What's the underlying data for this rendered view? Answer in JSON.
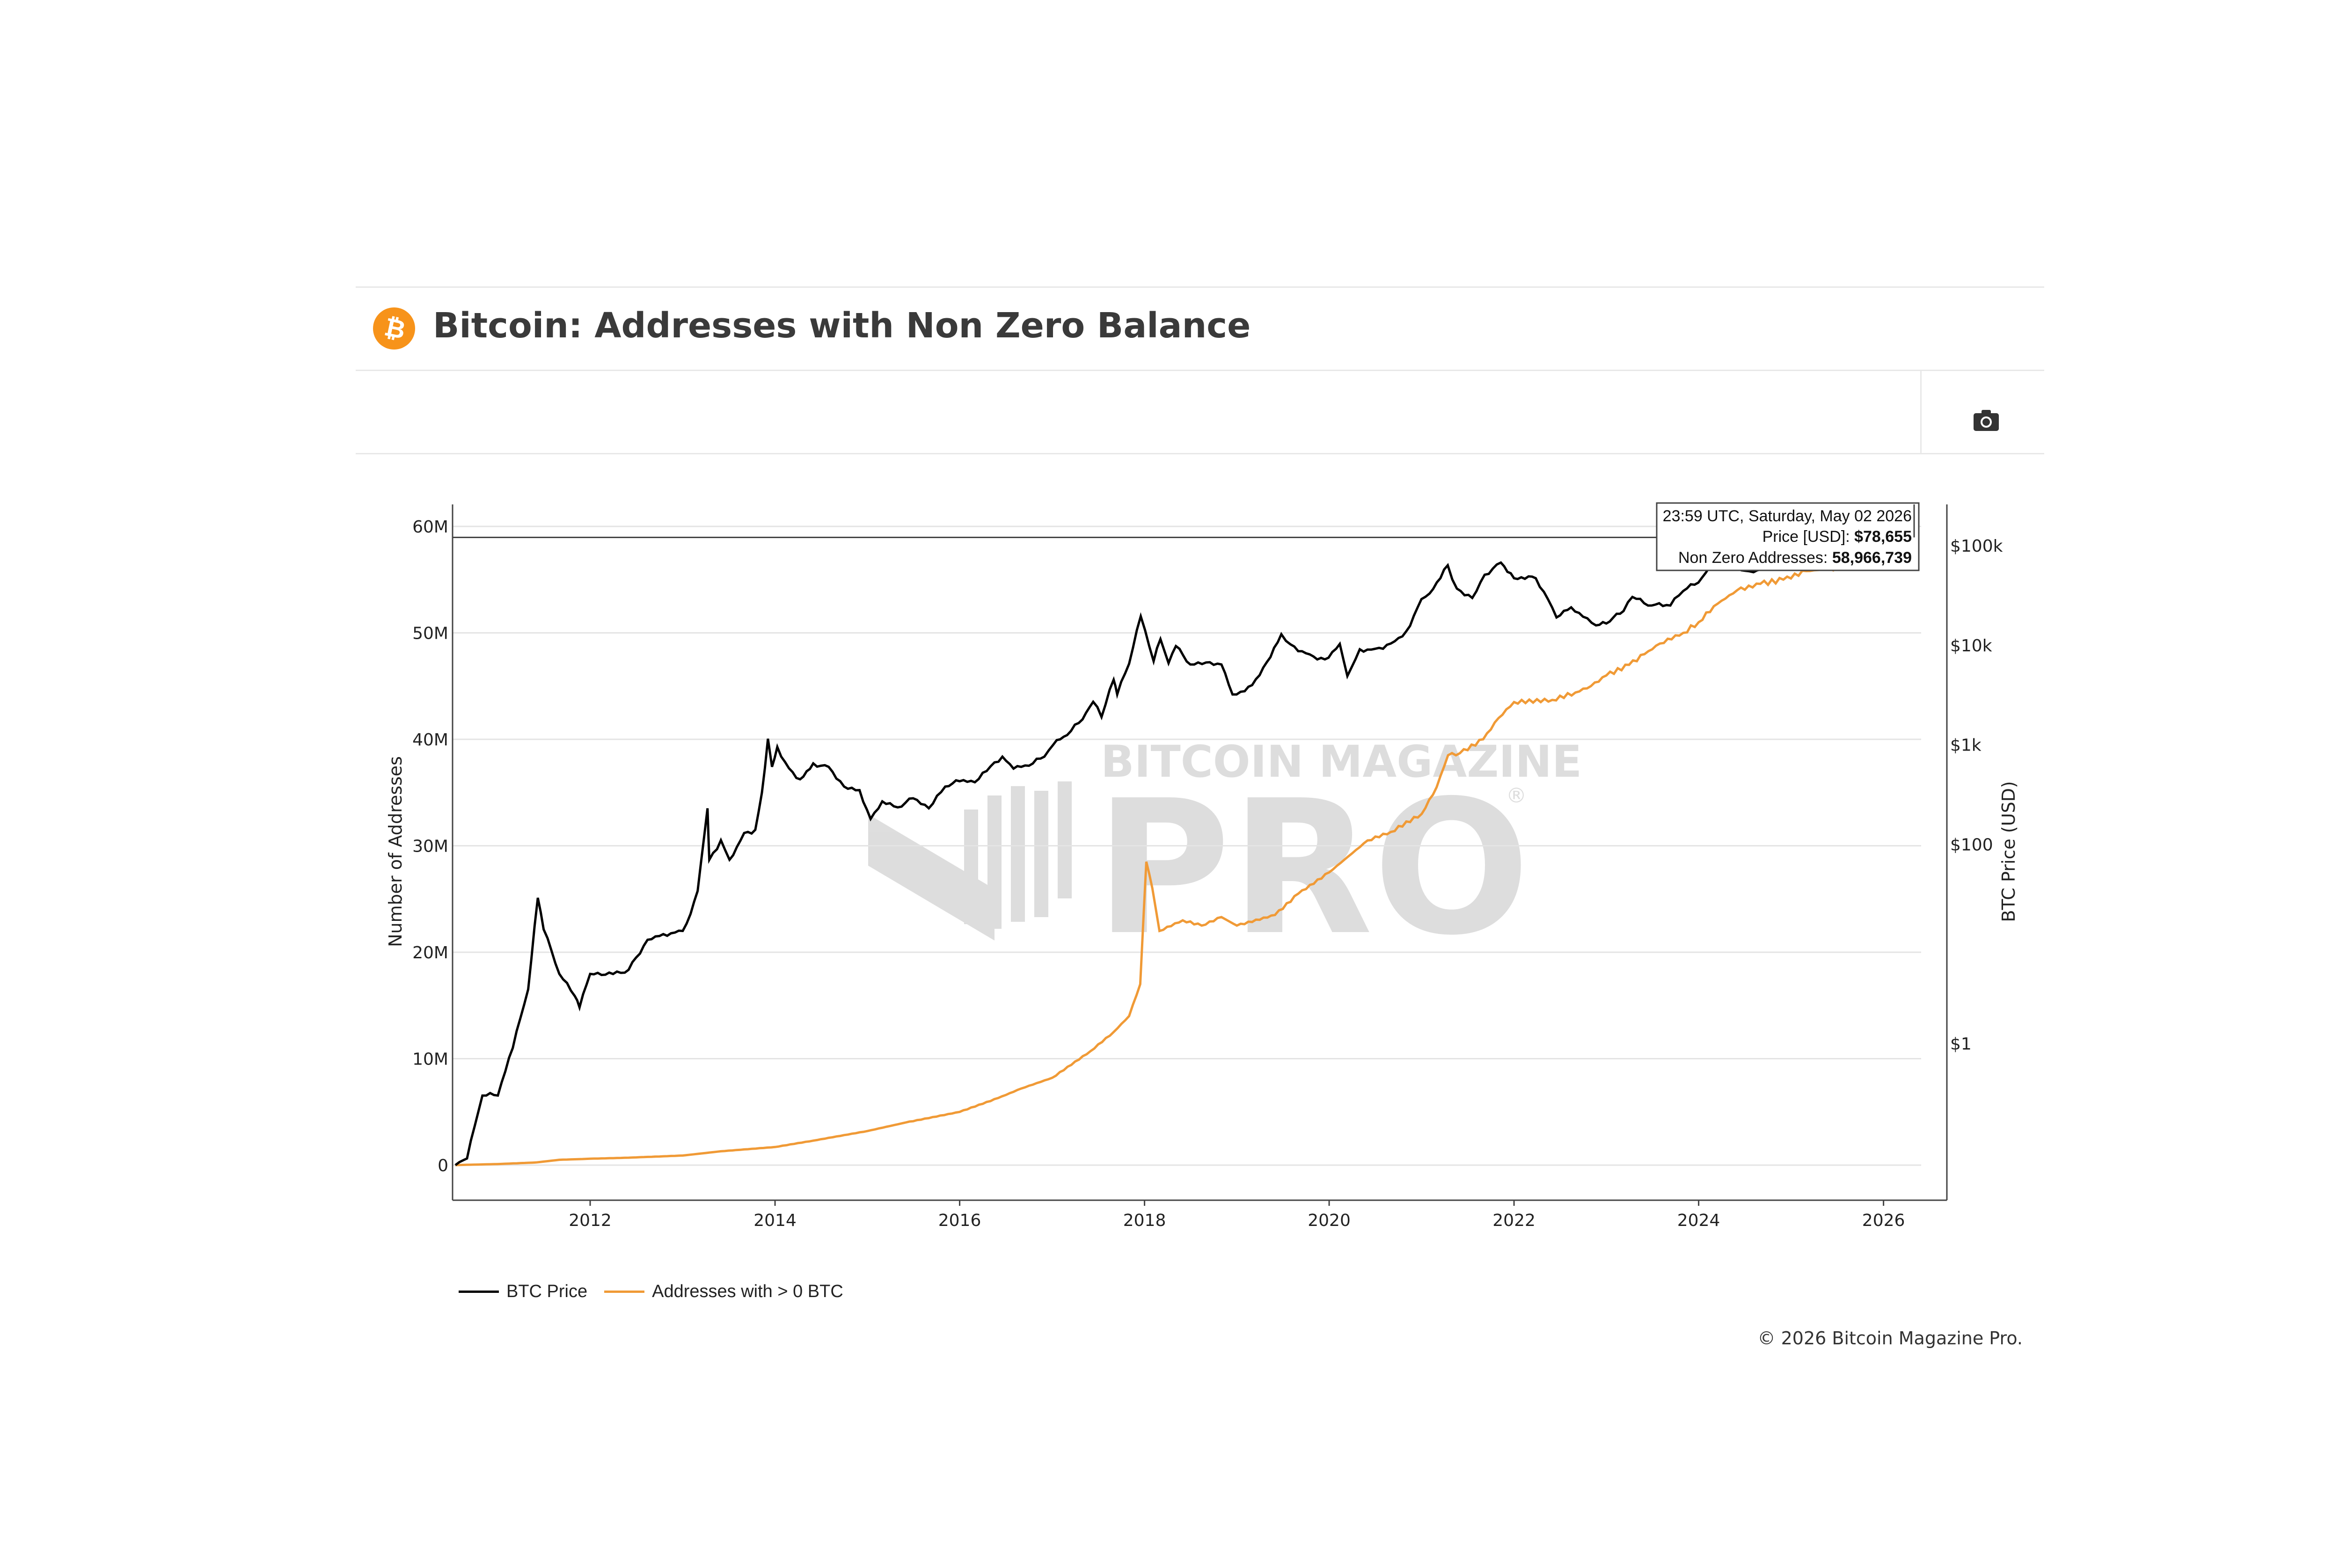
{
  "header": {
    "title": "Bitcoin: Addresses with Non Zero Balance",
    "logo_icon": "bitcoin-logo-icon",
    "logo_color": "#f7931a",
    "camera_icon": "camera-icon"
  },
  "watermark": {
    "line1": "BITCOIN MAGAZINE",
    "line2": "PRO",
    "registered": "®"
  },
  "tooltip": {
    "date": "23:59 UTC, Saturday, May 02 2026",
    "price_label": "Price [USD]: ",
    "price_value": "$78,655",
    "addr_label": "Non Zero Addresses: ",
    "addr_value": "58,966,739"
  },
  "legend": {
    "btc_price": "BTC Price",
    "addresses": "Addresses with > 0 BTC"
  },
  "copyright": "© 2026 Bitcoin Magazine Pro.",
  "chart_data": {
    "type": "line",
    "title": "Bitcoin: Addresses with Non Zero Balance",
    "ylabel": "Number of Addresses",
    "y2label": "BTC Price (USD)",
    "x_range": [
      "2010-07-17",
      "2026-05-02"
    ],
    "ylim": [
      0,
      60000000
    ],
    "y2_scale": "log",
    "x_ticks": [
      "2012",
      "2014",
      "2016",
      "2018",
      "2020",
      "2022",
      "2024",
      "2026"
    ],
    "y_ticks": [
      "0",
      "10M",
      "20M",
      "30M",
      "40M",
      "50M",
      "60M"
    ],
    "y_tick_values": [
      0,
      10000000,
      20000000,
      30000000,
      40000000,
      50000000,
      60000000
    ],
    "y2_ticks": [
      "$1",
      "$100",
      "$1k",
      "$10k",
      "$100k"
    ],
    "y2_tick_values": [
      1,
      100,
      1000,
      10000,
      100000
    ],
    "grid": true,
    "legend_position": "bottom-left",
    "series": [
      {
        "name": "BTC Price",
        "axis": "right",
        "color": "#000000",
        "x": [
          "2010-07-17",
          "2010-09-01",
          "2010-11-01",
          "2011-01-01",
          "2011-03-01",
          "2011-05-01",
          "2011-06-08",
          "2011-07-01",
          "2011-09-01",
          "2011-11-01",
          "2011-11-20",
          "2012-01-01",
          "2012-03-01",
          "2012-06-01",
          "2012-08-15",
          "2012-10-01",
          "2012-12-01",
          "2013-01-01",
          "2013-02-01",
          "2013-03-01",
          "2013-04-09",
          "2013-04-16",
          "2013-06-01",
          "2013-07-05",
          "2013-09-01",
          "2013-10-15",
          "2013-11-10",
          "2013-12-04",
          "2013-12-20",
          "2014-01-10",
          "2014-02-25",
          "2014-04-10",
          "2014-06-01",
          "2014-08-01",
          "2014-10-01",
          "2014-12-01",
          "2015-01-14",
          "2015-03-01",
          "2015-05-01",
          "2015-07-01",
          "2015-09-01",
          "2015-11-05",
          "2016-01-01",
          "2016-03-01",
          "2016-06-18",
          "2016-08-01",
          "2016-10-01",
          "2016-12-01",
          "2017-01-05",
          "2017-03-01",
          "2017-05-01",
          "2017-06-12",
          "2017-07-15",
          "2017-09-01",
          "2017-09-15",
          "2017-11-01",
          "2017-12-17",
          "2018-02-06",
          "2018-03-05",
          "2018-04-06",
          "2018-05-05",
          "2018-07-01",
          "2018-09-01",
          "2018-11-01",
          "2018-12-15",
          "2019-02-01",
          "2019-04-01",
          "2019-06-26",
          "2019-08-01",
          "2019-10-01",
          "2019-12-15",
          "2020-02-12",
          "2020-03-13",
          "2020-05-01",
          "2020-07-01",
          "2020-09-01",
          "2020-11-01",
          "2020-12-31",
          "2021-02-01",
          "2021-04-14",
          "2021-05-20",
          "2021-07-20",
          "2021-09-07",
          "2021-11-10",
          "2022-01-01",
          "2022-03-28",
          "2022-05-15",
          "2022-06-18",
          "2022-08-15",
          "2022-10-01",
          "2022-11-21",
          "2023-01-01",
          "2023-03-10",
          "2023-04-14",
          "2023-06-15",
          "2023-09-11",
          "2023-11-01",
          "2023-12-31",
          "2024-03-14",
          "2024-05-01",
          "2024-08-05",
          "2024-10-01",
          "2024-12-17",
          "2025-01-20",
          "2025-04-08",
          "2025-06-01",
          "2025-08-14",
          "2025-10-06",
          "2025-11-21",
          "2026-01-01",
          "2026-02-06",
          "2026-03-15",
          "2026-05-02"
        ],
        "values": [
          0.06,
          0.07,
          0.3,
          0.3,
          0.9,
          3.5,
          29,
          14,
          5,
          3,
          2.3,
          5,
          4.9,
          5.5,
          11,
          12,
          13,
          13.5,
          20,
          34,
          230,
          70,
          110,
          70,
          130,
          140,
          330,
          1150,
          600,
          950,
          580,
          450,
          650,
          600,
          380,
          350,
          180,
          270,
          235,
          290,
          230,
          380,
          430,
          420,
          760,
          575,
          615,
          760,
          1000,
          1250,
          1800,
          2700,
          1900,
          4500,
          3200,
          6500,
          19500,
          6900,
          11500,
          6600,
          9800,
          6400,
          6700,
          6400,
          3200,
          3450,
          5000,
          12900,
          10200,
          8300,
          7200,
          10300,
          4900,
          9100,
          9200,
          10400,
          13800,
          29000,
          33000,
          63500,
          37000,
          29800,
          51000,
          67500,
          47000,
          47000,
          29000,
          19000,
          24000,
          19300,
          15800,
          16500,
          22000,
          30500,
          25000,
          25000,
          35000,
          42500,
          72000,
          60000,
          54000,
          60000,
          106000,
          108000,
          76000,
          105000,
          123000,
          125000,
          84000,
          88000,
          70000,
          68000,
          78655
        ]
      },
      {
        "name": "Addresses with > 0 BTC",
        "axis": "left",
        "color": "#f09a36",
        "x": [
          "2010-07-17",
          "2010-10-01",
          "2011-01-01",
          "2011-06-01",
          "2011-09-01",
          "2012-01-01",
          "2012-06-01",
          "2013-01-01",
          "2013-06-01",
          "2014-01-01",
          "2014-06-01",
          "2015-01-01",
          "2015-06-01",
          "2016-01-01",
          "2016-06-01",
          "2016-09-01",
          "2017-01-01",
          "2017-06-01",
          "2017-09-01",
          "2017-11-01",
          "2017-12-15",
          "2018-01-08",
          "2018-02-01",
          "2018-03-01",
          "2018-06-01",
          "2018-08-15",
          "2018-11-01",
          "2019-01-01",
          "2019-06-01",
          "2019-09-01",
          "2020-01-01",
          "2020-06-01",
          "2020-09-01",
          "2021-01-01",
          "2021-03-01",
          "2021-04-15",
          "2021-06-01",
          "2021-09-01",
          "2021-11-01",
          "2022-01-01",
          "2022-06-01",
          "2022-09-01",
          "2022-11-01",
          "2023-01-01",
          "2023-04-01",
          "2023-06-01",
          "2023-08-01",
          "2023-11-01",
          "2024-01-01",
          "2024-03-01",
          "2024-06-01",
          "2024-09-01",
          "2024-12-01",
          "2025-03-01",
          "2025-06-01",
          "2025-09-01",
          "2025-12-01",
          "2026-02-01",
          "2026-05-02"
        ],
        "values": [
          0,
          50000,
          100000,
          250000,
          500000,
          600000,
          700000,
          900000,
          1300000,
          1700000,
          2300000,
          3200000,
          4000000,
          5000000,
          6300000,
          7200000,
          8200000,
          10700000,
          12500000,
          14000000,
          17000000,
          28500000,
          26000000,
          22000000,
          23000000,
          22500000,
          23300000,
          22500000,
          23500000,
          25500000,
          27500000,
          30500000,
          31300000,
          33000000,
          35500000,
          38500000,
          38700000,
          40000000,
          42000000,
          43500000,
          43700000,
          44400000,
          45000000,
          46000000,
          47000000,
          48000000,
          49000000,
          50000000,
          51000000,
          52500000,
          54000000,
          54600000,
          55000000,
          55800000,
          56000000,
          56300000,
          57000000,
          58200000,
          58966739
        ]
      }
    ]
  }
}
